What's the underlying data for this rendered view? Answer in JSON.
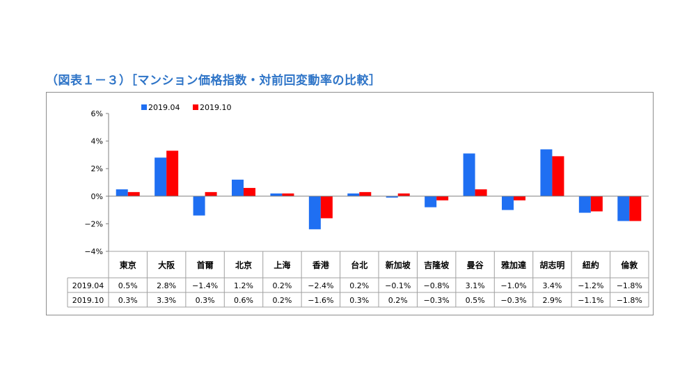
{
  "title": "（図表１－３）［マンション価格指数・対前回変動率の比較］",
  "chart_data": {
    "type": "bar",
    "categories": [
      "東京",
      "大阪",
      "首爾",
      "北京",
      "上海",
      "香港",
      "台北",
      "新加坡",
      "吉隆坡",
      "曼谷",
      "雅加達",
      "胡志明",
      "紐約",
      "倫敦"
    ],
    "series": [
      {
        "name": "2019.04",
        "color": "#1f6ff2",
        "values": [
          0.5,
          2.8,
          -1.4,
          1.2,
          0.2,
          -2.4,
          0.2,
          -0.1,
          -0.8,
          3.1,
          -1.0,
          3.4,
          -1.2,
          -1.8
        ]
      },
      {
        "name": "2019.10",
        "color": "#ff0000",
        "values": [
          0.3,
          3.3,
          0.3,
          0.6,
          0.2,
          -1.6,
          0.3,
          0.2,
          -0.3,
          0.5,
          -0.3,
          2.9,
          -1.1,
          -1.8
        ]
      }
    ],
    "table_values": {
      "2019.04": [
        "0.5%",
        "2.8%",
        "−1.4%",
        "1.2%",
        "0.2%",
        "−2.4%",
        "0.2%",
        "−0.1%",
        "−0.8%",
        "3.1%",
        "−1.0%",
        "3.4%",
        "−1.2%",
        "−1.8%"
      ],
      "2019.10": [
        "0.3%",
        "3.3%",
        "0.3%",
        "0.6%",
        "0.2%",
        "−1.6%",
        "0.3%",
        "0.2%",
        "−0.3%",
        "0.5%",
        "−0.3%",
        "2.9%",
        "−1.1%",
        "−1.8%"
      ]
    },
    "ylim": [
      -4,
      6
    ],
    "yticks": [
      6,
      4,
      2,
      0,
      -2,
      -4
    ],
    "ytick_labels": [
      "6%",
      "4%",
      "2%",
      "0%",
      "−2%",
      "−4%"
    ],
    "legend_position": "top-left",
    "grid": false
  }
}
